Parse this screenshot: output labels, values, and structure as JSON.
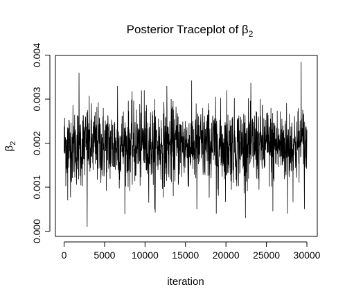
{
  "chart_data": {
    "type": "line",
    "title": "Posterior Traceplot of β",
    "title_subscript": "2",
    "xlabel": "iteration",
    "ylabel": "β",
    "ylabel_subscript": "2",
    "xlim": [
      0,
      30000
    ],
    "ylim": [
      0.0,
      0.004
    ],
    "x_ticks": [
      0,
      5000,
      10000,
      15000,
      20000,
      25000,
      30000
    ],
    "y_ticks": [
      0.0,
      0.001,
      0.002,
      0.003,
      0.004
    ],
    "x_tick_labels": [
      "0",
      "5000",
      "10000",
      "15000",
      "20000",
      "25000",
      "30000"
    ],
    "y_tick_labels": [
      "0.000",
      "0.001",
      "0.002",
      "0.003",
      "0.004"
    ],
    "grid": false,
    "line_color": "#000000",
    "series": [
      {
        "n_iterations": 30000,
        "mean": 0.00195,
        "sd": 0.00045,
        "min": 0.0001,
        "max": 0.00385,
        "spikes": [
          {
            "x": 450,
            "y": 0.0007
          },
          {
            "x": 1850,
            "y": 0.0036
          },
          {
            "x": 2850,
            "y": 0.0001
          },
          {
            "x": 6600,
            "y": 0.0033
          },
          {
            "x": 9900,
            "y": 0.0032
          },
          {
            "x": 11200,
            "y": 0.0005
          },
          {
            "x": 12700,
            "y": 0.0033
          },
          {
            "x": 16400,
            "y": 0.0005
          },
          {
            "x": 18800,
            "y": 0.0004
          },
          {
            "x": 20100,
            "y": 0.0032
          },
          {
            "x": 25800,
            "y": 0.00045
          },
          {
            "x": 27600,
            "y": 0.0004
          },
          {
            "x": 29300,
            "y": 0.00385
          },
          {
            "x": 29700,
            "y": 0.0005
          }
        ]
      }
    ]
  }
}
